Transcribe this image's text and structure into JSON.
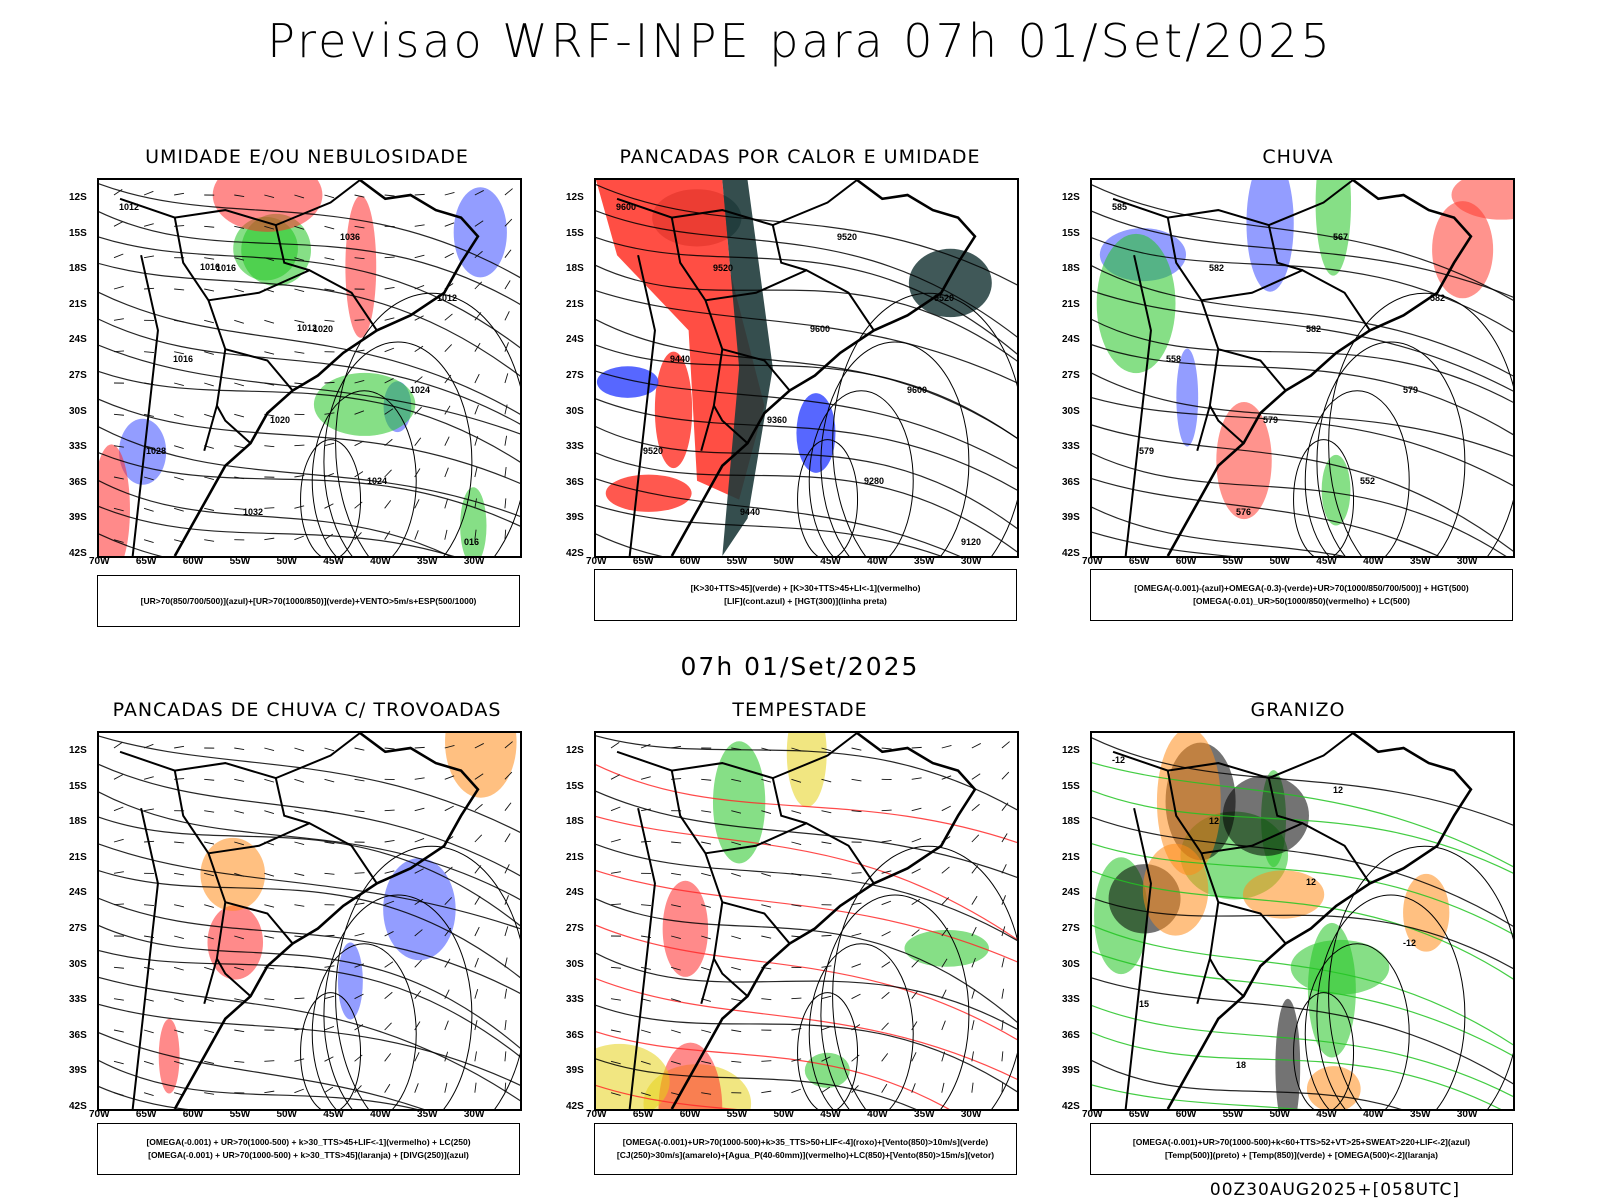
{
  "title": "Previsao WRF-INPE  para 07h 01/Set/2025",
  "mid_title": "07h 01/Set/2025",
  "footer": "00Z30AUG2025+[058UTC]",
  "y_ticks": [
    "12S",
    "15S",
    "18S",
    "21S",
    "24S",
    "27S",
    "30S",
    "33S",
    "36S",
    "39S",
    "42S"
  ],
  "x_ticks": [
    "70W",
    "65W",
    "60W",
    "55W",
    "50W",
    "45W",
    "40W",
    "35W",
    "30W"
  ],
  "panels": [
    {
      "title": "UMIDADE E/OU NEBULOSIDADE",
      "legend": [
        "[UR>70(850/700/500)](azul)+[UR>70(1000/850)](verde)+VENTO>5m/s+ESP(500/1000)"
      ],
      "map_labels": [
        "1012",
        "1016",
        "1020",
        "1024",
        "1028",
        "1032",
        "1036",
        "1012",
        "1016",
        "1020",
        "1024",
        "016",
        "1016",
        "1012"
      ],
      "colors": {
        "primary": "#22c422",
        "secondary": "#3a4cff",
        "tertiary": "#ff2a2a"
      }
    },
    {
      "title": "PANCADAS POR CALOR E UMIDADE",
      "legend": [
        "[K>30+TTS>45](verde) + [K>30+TTS>45+LI<-1](vermelho)",
        "[LIF](cont.azul) + [HGT(300)](linha preta)"
      ],
      "map_labels": [
        "9600",
        "9520",
        "9600",
        "9600",
        "9520",
        "9440",
        "9520",
        "9520",
        "9440",
        "9360",
        "9280",
        "9120"
      ],
      "colors": {
        "primary": "#ff3b30",
        "secondary": "#1f3b3b",
        "tertiary": "#3a4cff"
      }
    },
    {
      "title": "CHUVA",
      "legend": [
        "[OMEGA(-0.001)-(azul)+OMEGA(-0.3)-(verde)+UR>70(1000/850/700/500)] + HGT(500)",
        "[OMEGA(-0.01)_UR>50(1000/850)(vermelho) + LC(500)"
      ],
      "map_labels": [
        "585",
        "582",
        "582",
        "579",
        "579",
        "576",
        "567",
        "582",
        "558",
        "579",
        "552"
      ],
      "colors": {
        "primary": "#ff3b30",
        "secondary": "#22c422",
        "tertiary": "#3a4cff"
      }
    },
    {
      "title": "PANCADAS DE CHUVA C/ TROVOADAS",
      "legend": [
        "[OMEGA(-0.001) + UR>70(1000-500) + k>30_TTS>45+LIF<-1](vermelho) + LC(250)",
        "[OMEGA(-0.001) + UR>70(1000-500) + k>30_TTS>45](laranja) + [DIVG(250)](azul)"
      ],
      "map_labels": [],
      "colors": {
        "primary": "#3a4cff",
        "secondary": "#ff8c1a",
        "tertiary": "#ff2a2a"
      }
    },
    {
      "title": "TEMPESTADE",
      "legend": [
        "[OMEGA(-0.001)+UR>70(1000-500)+k>35_TTS>50+LIF<-4](roxo)+[Vento(850)>10m/s](verde)",
        "[CJ(250)>30m/s](amarelo)+[Agua_P(40-60mm)](vermelho)+LC(850)+[Vento(850)>15m/s](vetor)"
      ],
      "map_labels": [],
      "colors": {
        "primary": "#22c422",
        "secondary": "#e6d21a",
        "tertiary": "#ff2a2a"
      }
    },
    {
      "title": "GRANIZO",
      "legend": [
        "[OMEGA(-0.001)+UR>70(1000-500)+k<60+TTS>52+VT>25+SWEAT>220+LIF<-2](azul)",
        "[Temp(500)](preto) + [Temp(850)](verde) + [OMEGA(500)<-2](laranja)"
      ],
      "map_labels": [
        "-12",
        "12",
        "12",
        "-12",
        "15",
        "18",
        "12"
      ],
      "colors": {
        "primary": "#22c422",
        "secondary": "#ff8c1a",
        "tertiary": "#000000"
      }
    }
  ]
}
